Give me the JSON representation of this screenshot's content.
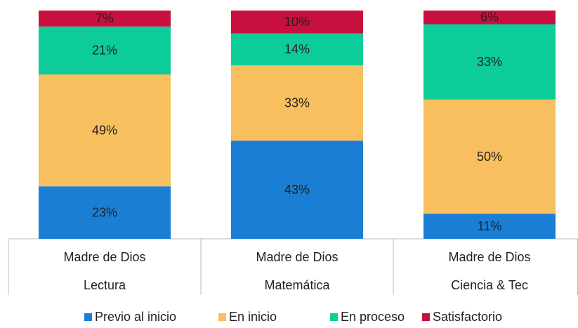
{
  "chart_data": {
    "type": "stacked_bar",
    "categories": [
      [
        "Madre de Dios",
        "Lectura"
      ],
      [
        "Madre de Dios",
        "Matemática"
      ],
      [
        "Madre de Dios",
        "Ciencia & Tec"
      ]
    ],
    "ylim": [
      0,
      100
    ],
    "series": [
      {
        "name": "Previo al inicio",
        "color": "#1a7fd4",
        "values": [
          23,
          43,
          11
        ],
        "value_labels": [
          "23%",
          "43%",
          "11%"
        ]
      },
      {
        "name": "En inicio",
        "color": "#f8bf5e",
        "values": [
          49,
          33,
          50
        ],
        "value_labels": [
          "49%",
          "33%",
          "50%"
        ]
      },
      {
        "name": "En proceso",
        "color": "#0ccc9a",
        "values": [
          21,
          14,
          33
        ],
        "value_labels": [
          "21%",
          "14%",
          "33%"
        ]
      },
      {
        "name": "Satisfactorio",
        "color": "#c8103e",
        "values": [
          7,
          10,
          6
        ],
        "value_labels": [
          "7%",
          "10%",
          "6%"
        ]
      }
    ],
    "legend": "bottom"
  }
}
